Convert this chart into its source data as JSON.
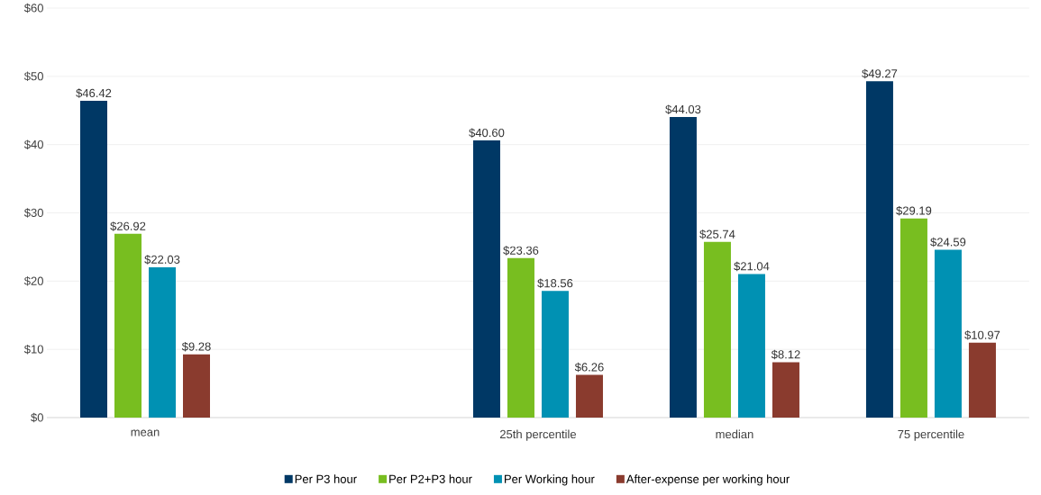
{
  "chart_data": {
    "type": "bar",
    "categories": [
      "mean",
      null,
      "25th percentile",
      "median",
      "75 percentile"
    ],
    "series": [
      {
        "name": "Per P3 hour",
        "color": "#003865",
        "values": [
          46.42,
          null,
          40.6,
          44.03,
          49.27
        ],
        "value_labels": [
          "$46.42",
          null,
          "$40.60",
          "$44.03",
          "$49.27"
        ]
      },
      {
        "name": "Per P2+P3 hour",
        "color": "#78BE20",
        "values": [
          26.92,
          null,
          23.36,
          25.74,
          29.19
        ],
        "value_labels": [
          "$26.92",
          null,
          "$23.36",
          "$25.74",
          "$29.19"
        ]
      },
      {
        "name": "Per Working hour",
        "color": "#0091B3",
        "values": [
          22.03,
          null,
          18.56,
          21.04,
          24.59
        ],
        "value_labels": [
          "$22.03",
          null,
          "$18.56",
          "$21.04",
          "$24.59"
        ]
      },
      {
        "name": "After-expense per working hour",
        "color": "#8A3B2E",
        "values": [
          9.28,
          null,
          6.26,
          8.12,
          10.97
        ],
        "value_labels": [
          "$9.28",
          null,
          "$6.26",
          "$8.12",
          "$10.97"
        ]
      }
    ],
    "ylim": [
      0,
      60
    ],
    "yticks": [
      {
        "value": 0,
        "label": "$0"
      },
      {
        "value": 10,
        "label": "$10"
      },
      {
        "value": 20,
        "label": "$20"
      },
      {
        "value": 30,
        "label": "$30"
      },
      {
        "value": 40,
        "label": "$40"
      },
      {
        "value": 50,
        "label": "$50"
      },
      {
        "value": 60,
        "label": "$60"
      }
    ],
    "grid": "y",
    "legend": "bottom"
  }
}
